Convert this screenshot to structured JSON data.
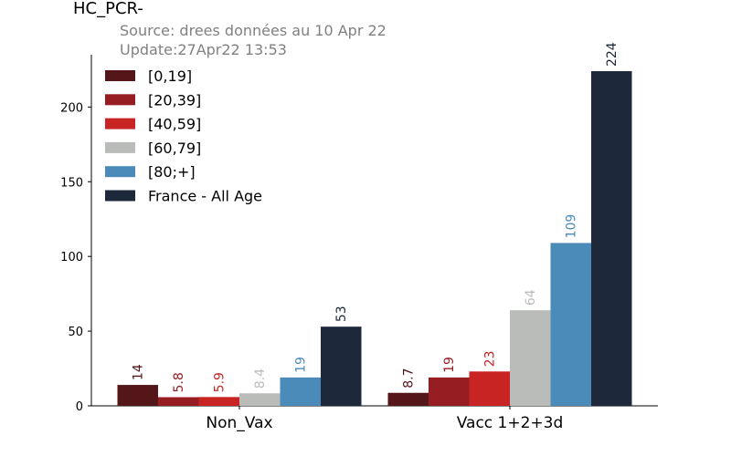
{
  "chart_data": {
    "type": "bar",
    "title": "HC_PCR-",
    "subtitle_lines": [
      "Source: drees données au 10 Apr 22",
      "Update:27Apr22 13:53"
    ],
    "categories": [
      "Non_Vax",
      "Vacc 1+2+3d"
    ],
    "series": [
      {
        "name": "[0,19]",
        "color": "#55161a",
        "values": [
          14,
          8.7
        ],
        "labels": [
          "14",
          "8.7"
        ]
      },
      {
        "name": "[20,39]",
        "color": "#961d22",
        "values": [
          5.8,
          19
        ],
        "labels": [
          "5.8",
          "19"
        ]
      },
      {
        "name": "[40,59]",
        "color": "#c92424",
        "values": [
          5.9,
          23
        ],
        "labels": [
          "5.9",
          "23"
        ]
      },
      {
        "name": "[60,79]",
        "color": "#babcba",
        "values": [
          8.4,
          64
        ],
        "labels": [
          "8.4",
          "64"
        ]
      },
      {
        "name": "[80;+]",
        "color": "#4b8bb9",
        "values": [
          19,
          109
        ],
        "labels": [
          "19",
          "109"
        ]
      },
      {
        "name": "France - All Age",
        "color": "#1e283b",
        "values": [
          53,
          224
        ],
        "labels": [
          "53",
          "224"
        ]
      }
    ],
    "yticks": [
      0,
      50,
      100,
      150,
      200
    ],
    "ylim": [
      0,
      235
    ],
    "legend_position": "upper-left",
    "grid": false
  }
}
